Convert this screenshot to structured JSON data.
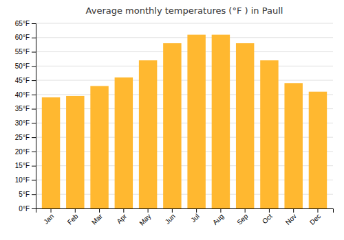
{
  "chart_data": {
    "type": "bar",
    "title": "Average monthly temperatures (°F ) in Paull",
    "categories": [
      "Jan",
      "Feb",
      "Mar",
      "Apr",
      "May",
      "Jun",
      "Jul",
      "Aug",
      "Sep",
      "Oct",
      "Nov",
      "Dec"
    ],
    "values": [
      39,
      39.5,
      43,
      46,
      52,
      58,
      61,
      61,
      58,
      52,
      44,
      41
    ],
    "color": "#FFB830",
    "ylim": [
      0,
      65
    ],
    "yticks": [
      {
        "value": 0,
        "label": "0°F"
      },
      {
        "value": 5,
        "label": "5°F"
      },
      {
        "value": 10,
        "label": "10°F"
      },
      {
        "value": 15,
        "label": "15°F"
      },
      {
        "value": 20,
        "label": "20°F"
      },
      {
        "value": 25,
        "label": "25°F"
      },
      {
        "value": 30,
        "label": "30°F"
      },
      {
        "value": 35,
        "label": "35°F"
      },
      {
        "value": 40,
        "label": "40°F"
      },
      {
        "value": 45,
        "label": "45°F"
      },
      {
        "value": 50,
        "label": "50°F"
      },
      {
        "value": 55,
        "label": "55°F"
      },
      {
        "value": 60,
        "label": "60°F"
      },
      {
        "value": 65,
        "label": "65°F"
      }
    ],
    "grid": true
  }
}
